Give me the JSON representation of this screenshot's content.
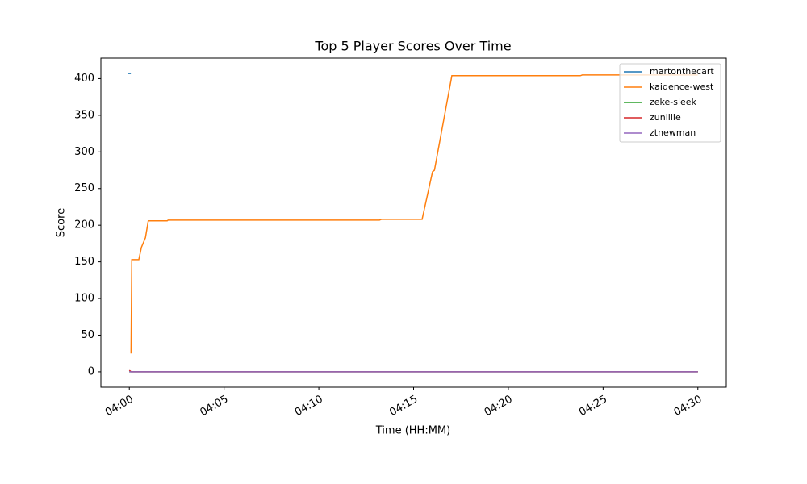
{
  "chart_data": {
    "type": "line",
    "title": "Top 5 Player Scores Over Time",
    "x_label": "Time (HH:MM)",
    "y_label": "Score",
    "xlim": [
      -1.5,
      31.5
    ],
    "ylim": [
      -21,
      428
    ],
    "xticks": [
      {
        "value": 0,
        "label": "04:00"
      },
      {
        "value": 5,
        "label": "04:05"
      },
      {
        "value": 10,
        "label": "04:10"
      },
      {
        "value": 15,
        "label": "04:15"
      },
      {
        "value": 20,
        "label": "04:20"
      },
      {
        "value": 25,
        "label": "04:25"
      },
      {
        "value": 30,
        "label": "04:30"
      }
    ],
    "yticks": [
      0,
      50,
      100,
      150,
      200,
      250,
      300,
      350,
      400
    ],
    "legend": "upper right",
    "series": [
      {
        "name": "martonthecart",
        "color": "#1f77b4",
        "x": [
          -0.08,
          0.08
        ],
        "values": [
          407,
          407
        ]
      },
      {
        "name": "kaidence-west",
        "color": "#ff7f0e",
        "x": [
          0.09,
          0.13,
          0.5,
          0.64,
          0.85,
          1.0,
          2.0,
          2.05,
          13.2,
          13.3,
          15.45,
          16.0,
          16.1,
          17.02,
          23.8,
          23.9,
          30
        ],
        "values": [
          25,
          153,
          153,
          170,
          183,
          206,
          206,
          207,
          207,
          208,
          208,
          273,
          275,
          404,
          404,
          405,
          405
        ]
      },
      {
        "name": "zeke-sleek",
        "color": "#2ca02c",
        "x": [
          0,
          30
        ],
        "values": [
          0,
          0
        ]
      },
      {
        "name": "zunillie",
        "color": "#d62728",
        "x": [
          0,
          0.1,
          30
        ],
        "values": [
          2,
          0,
          0
        ]
      },
      {
        "name": "ztnewman",
        "color": "#9467bd",
        "x": [
          0,
          30
        ],
        "values": [
          0,
          0
        ]
      }
    ]
  }
}
